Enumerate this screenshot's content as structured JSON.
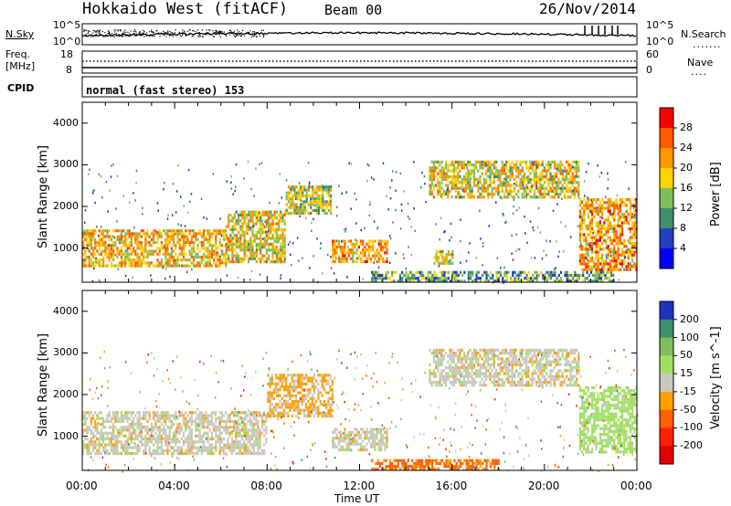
{
  "header": {
    "station": "Hokkaido West (fitACF)",
    "beam": "Beam 00",
    "date": "26/Nov/2014"
  },
  "noise_panel": {
    "left_label": "N.Sky",
    "right_label": "N.Search",
    "left_ticks": [
      "10^5",
      "10^0"
    ],
    "right_ticks": [
      "10^5",
      "10^0"
    ]
  },
  "freq_panel": {
    "left_label_line1": "Freq.",
    "left_label_line2": "[MHz]",
    "right_label": "Nave",
    "left_ticks": [
      "18",
      "8"
    ],
    "right_ticks": [
      "60",
      "0"
    ]
  },
  "cpid_panel": {
    "label": "CPID",
    "value": "normal (fast stereo) 153"
  },
  "chart_data": [
    {
      "type": "heatmap",
      "title": "",
      "parameter": "Power",
      "colorbar_label": "Power [dB]",
      "colorbar_ticks": [
        "28",
        "24",
        "20",
        "16",
        "12",
        "8",
        "4"
      ],
      "colorbar_colors": [
        "#ff0000",
        "#ff5a00",
        "#ff9800",
        "#ffd200",
        "#7ebd5d",
        "#3f8f6a",
        "#1f3fbf",
        "#0000ff"
      ],
      "ylabel": "Slant Range [km]",
      "ylim": [
        180,
        4500
      ],
      "yticks": [
        "1000",
        "2000",
        "3000",
        "4000"
      ],
      "xlim": [
        0,
        24
      ],
      "regions": [
        {
          "t0": 0.0,
          "t1": 6.2,
          "r0": 550,
          "r1": 1450,
          "level": 20
        },
        {
          "t0": 6.2,
          "t1": 8.8,
          "r0": 700,
          "r1": 1900,
          "level": 18
        },
        {
          "t0": 8.8,
          "t1": 10.8,
          "r0": 1800,
          "r1": 2500,
          "level": 16
        },
        {
          "t0": 10.8,
          "t1": 13.2,
          "r0": 700,
          "r1": 1200,
          "level": 22
        },
        {
          "t0": 15.2,
          "t1": 16.0,
          "r0": 650,
          "r1": 950,
          "level": 18
        },
        {
          "t0": 15.0,
          "t1": 21.5,
          "r0": 2200,
          "r1": 3100,
          "level": 18
        },
        {
          "t0": 21.5,
          "t1": 24.0,
          "r0": 500,
          "r1": 2200,
          "level": 22
        },
        {
          "t0": 12.5,
          "t1": 23.0,
          "r0": 200,
          "r1": 450,
          "level": 12
        }
      ]
    },
    {
      "type": "heatmap",
      "title": "",
      "parameter": "Velocity",
      "colorbar_label": "Velocity [m s^-1]",
      "colorbar_ticks": [
        "200",
        "100",
        "50",
        "15",
        "-15",
        "-50",
        "-100",
        "-200"
      ],
      "colorbar_colors": [
        "#2030c0",
        "#3f8f6a",
        "#7ec060",
        "#a0e060",
        "#c8c8c0",
        "#ffa000",
        "#ff6000",
        "#ff2000",
        "#e00000"
      ],
      "ylabel": "Slant Range [km]",
      "ylim": [
        180,
        4500
      ],
      "yticks": [
        "1000",
        "2000",
        "3000",
        "4000"
      ],
      "xlim": [
        0,
        24
      ],
      "xlabel": "Time UT",
      "xticks": [
        "00:00",
        "04:00",
        "08:00",
        "12:00",
        "16:00",
        "20:00",
        "00:00"
      ],
      "regions": [
        {
          "t0": 0.0,
          "t1": 8.0,
          "r0": 550,
          "r1": 1600,
          "level": 0
        },
        {
          "t0": 8.0,
          "t1": 10.8,
          "r0": 1500,
          "r1": 2500,
          "level": -20
        },
        {
          "t0": 10.8,
          "t1": 13.2,
          "r0": 700,
          "r1": 1200,
          "level": 0
        },
        {
          "t0": 12.5,
          "t1": 18.0,
          "r0": 200,
          "r1": 450,
          "level": -60
        },
        {
          "t0": 15.0,
          "t1": 21.5,
          "r0": 2200,
          "r1": 3100,
          "level": 0
        },
        {
          "t0": 21.5,
          "t1": 24.0,
          "r0": 600,
          "r1": 2200,
          "level": 30
        }
      ]
    }
  ]
}
